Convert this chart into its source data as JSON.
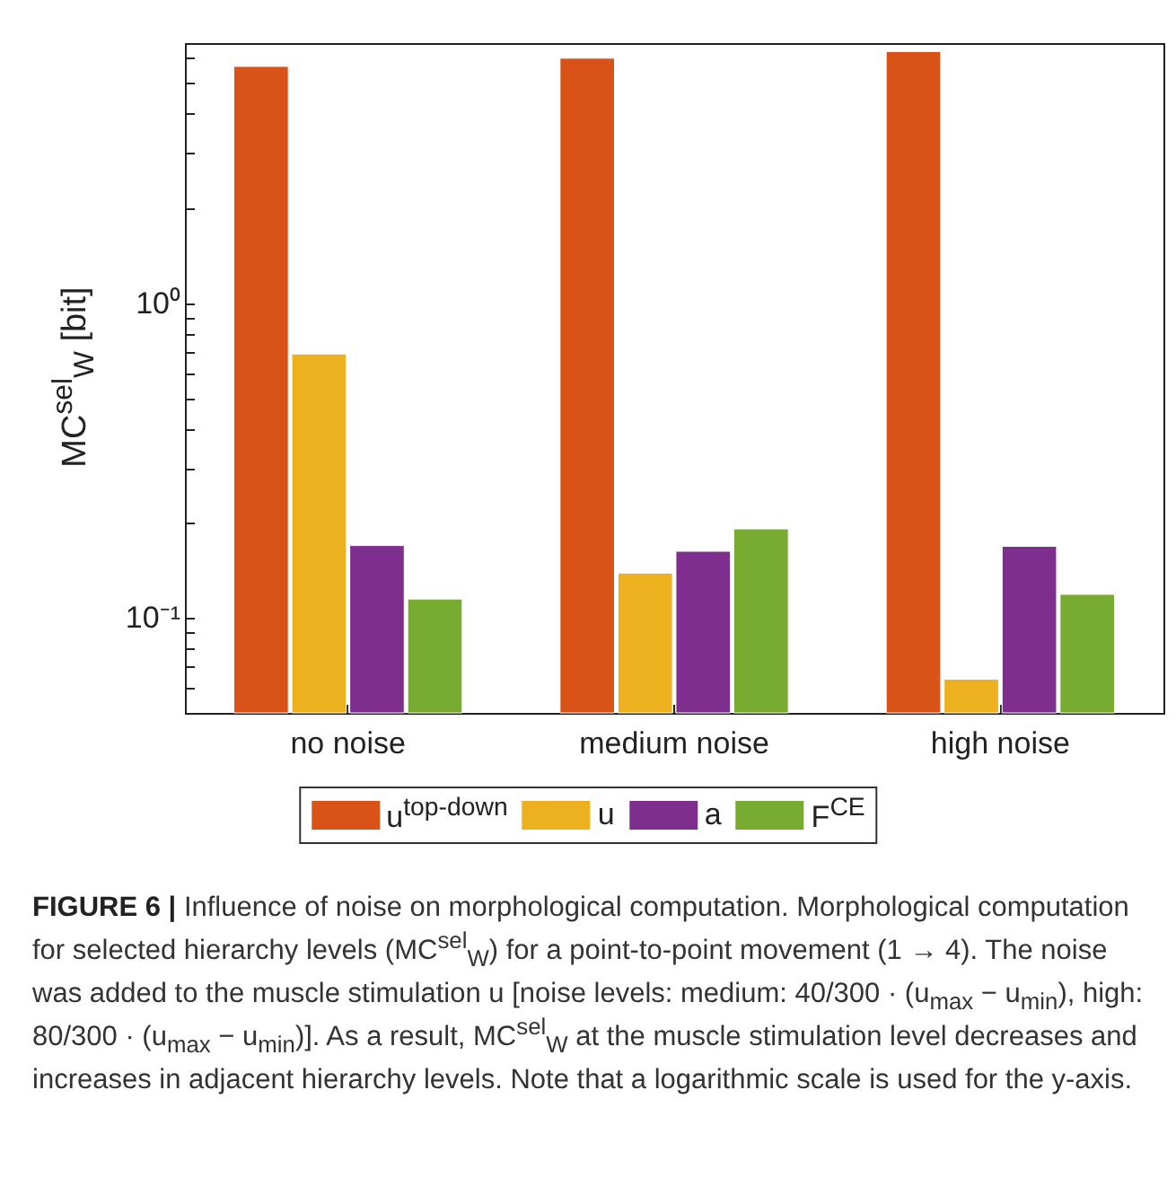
{
  "chart_data": {
    "type": "bar",
    "ylabel": "MC$^{sel}$$_{W}$ [bit]",
    "categories": [
      "no noise",
      "medium noise",
      "high noise"
    ],
    "series": [
      {
        "name": "u$^{top-down}$",
        "color": "#d95319",
        "values": [
          5.65,
          6.0,
          6.3
        ]
      },
      {
        "name": "u",
        "color": "#edb120",
        "values": [
          0.69,
          0.139,
          0.064
        ]
      },
      {
        "name": "a",
        "color": "#7e2f8e",
        "values": [
          0.17,
          0.163,
          0.169
        ]
      },
      {
        "name": "F$^{CE}$",
        "color": "#77ac30",
        "values": [
          0.115,
          0.192,
          0.119
        ]
      }
    ],
    "log": true,
    "ylim": [
      0.05,
      6.7
    ],
    "yticks": [
      {
        "value": 0.06,
        "label": null
      },
      {
        "value": 0.07,
        "label": null
      },
      {
        "value": 0.08,
        "label": null
      },
      {
        "value": 0.09,
        "label": null
      },
      {
        "value": 0.1,
        "label": "10⁻¹"
      },
      {
        "value": 0.2,
        "label": null
      },
      {
        "value": 0.3,
        "label": null
      },
      {
        "value": 0.4,
        "label": null
      },
      {
        "value": 0.5,
        "label": null
      },
      {
        "value": 0.6,
        "label": null
      },
      {
        "value": 0.7,
        "label": null
      },
      {
        "value": 0.8,
        "label": null
      },
      {
        "value": 0.9,
        "label": null
      },
      {
        "value": 1,
        "label": "10⁰"
      },
      {
        "value": 2,
        "label": null
      },
      {
        "value": 3,
        "label": null
      },
      {
        "value": 4,
        "label": null
      },
      {
        "value": 5,
        "label": null
      },
      {
        "value": 6,
        "label": null
      }
    ],
    "legend": "bottom",
    "annotations": [
      "FIGURE 6 |",
      "Influence of noise on morphological computation. Morphological computation for selected hierarchy levels (MC$^{sel}$$_{W}$) for a point-to-point movement (1 → 4). The noise was added to the muscle stimulation u [noise levels: medium: 40/300 · (u$_{max}$ − u$_{min}$), high: 80/300 · (u$_{max}$ − u$_{min}$)]. As a result, MC$^{sel}$$_{W}$ at the muscle stimulation level decreases and increases in adjacent hierarchy levels. Note that a logarithmic scale is used for the y-axis."
    ]
  }
}
